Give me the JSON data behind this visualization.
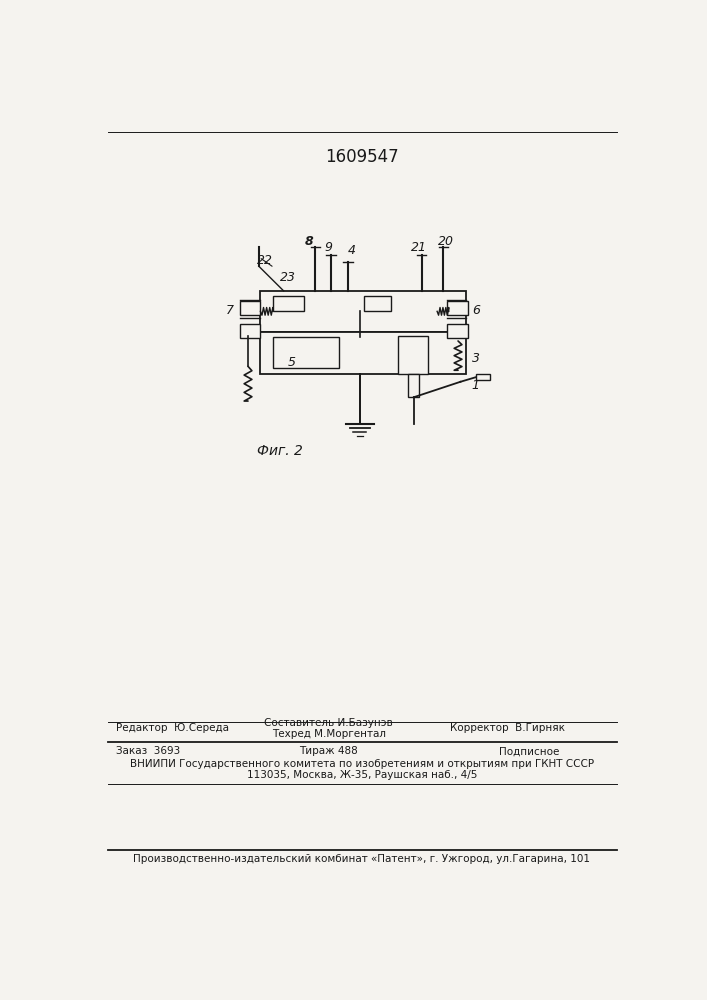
{
  "patent_number": "1609547",
  "fig_label": "Фиг. 2",
  "bg_color": "#f5f3ef",
  "line_color": "#1a1a1a",
  "editor_line": "Редактор  Ю.Середа",
  "composer_line1": "Составитель И.Базунэв",
  "composer_line2": "Техред М.Моргентал",
  "corrector_line": "Корректор  В.Гирняк",
  "order_line": "Заказ  3693",
  "circulation_line": "Тираж 488",
  "subscription_line": "Подписное",
  "vniipii_line1": "ВНИИПИ Государственного комитета по изобретениям и открытиям при ГКНТ СССР",
  "vniipii_line2": "113035, Москва, Ж-35, Раушская наб., 4/5",
  "factory_line": "Производственно-издательский комбинат «Патент», г. Ужгород, ул.Гагарина, 101"
}
